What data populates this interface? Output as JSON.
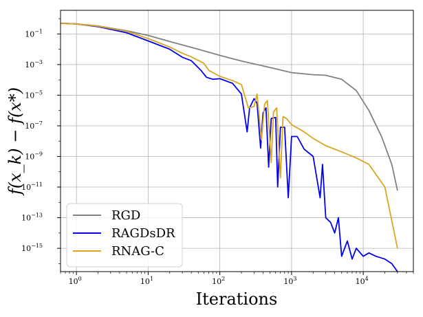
{
  "chart_data": {
    "type": "line",
    "title": "",
    "xlabel": "Iterations",
    "ylabel": "f(x_k) − f(x*)",
    "xscale": "log",
    "yscale": "log",
    "xlim": [
      0.6,
      50000
    ],
    "ylim": [
      3e-17,
      3.5
    ],
    "grid": true,
    "legend_position": "bottom-left",
    "x_ticks": [
      {
        "base": "10",
        "exp": "0",
        "value": 1
      },
      {
        "base": "10",
        "exp": "1",
        "value": 10
      },
      {
        "base": "10",
        "exp": "2",
        "value": 100
      },
      {
        "base": "10",
        "exp": "3",
        "value": 1000
      },
      {
        "base": "10",
        "exp": "4",
        "value": 10000
      }
    ],
    "y_ticks": [
      {
        "base": "10",
        "exp": "−1",
        "value": 0.1
      },
      {
        "base": "10",
        "exp": "−3",
        "value": 0.001
      },
      {
        "base": "10",
        "exp": "−5",
        "value": 1e-05
      },
      {
        "base": "10",
        "exp": "−7",
        "value": 1e-07
      },
      {
        "base": "10",
        "exp": "−9",
        "value": 1e-09
      },
      {
        "base": "10",
        "exp": "−11",
        "value": 1e-11
      },
      {
        "base": "10",
        "exp": "−13",
        "value": 1e-13
      },
      {
        "base": "10",
        "exp": "−15",
        "value": 1e-15
      }
    ],
    "series": [
      {
        "name": "RGD",
        "color": "#808080",
        "points": [
          [
            0.6,
            0.5
          ],
          [
            1,
            0.45
          ],
          [
            2,
            0.33
          ],
          [
            5,
            0.16
          ],
          [
            10,
            0.08
          ],
          [
            20,
            0.032
          ],
          [
            50,
            0.01
          ],
          [
            100,
            0.004
          ],
          [
            200,
            0.0017
          ],
          [
            500,
            0.00065
          ],
          [
            1000,
            0.0003
          ],
          [
            2000,
            0.00022
          ],
          [
            3000,
            0.0002
          ],
          [
            5000,
            0.00011
          ],
          [
            8000,
            2e-05
          ],
          [
            12000,
            1e-06
          ],
          [
            18000,
            2e-08
          ],
          [
            25000,
            3e-10
          ],
          [
            30000,
            6e-12
          ]
        ]
      },
      {
        "name": "RAGDsDR",
        "color": "#0000ee",
        "points": [
          [
            0.6,
            0.5
          ],
          [
            1,
            0.45
          ],
          [
            2,
            0.3
          ],
          [
            5,
            0.12
          ],
          [
            10,
            0.035
          ],
          [
            20,
            0.01
          ],
          [
            30,
            0.003
          ],
          [
            40,
            0.0018
          ],
          [
            55,
            0.0004
          ],
          [
            65,
            0.00015
          ],
          [
            80,
            0.00011
          ],
          [
            100,
            0.00012
          ],
          [
            150,
            6e-05
          ],
          [
            200,
            1.2e-05
          ],
          [
            240,
            4e-08
          ],
          [
            260,
            1.5e-06
          ],
          [
            300,
            6e-06
          ],
          [
            330,
            3e-06
          ],
          [
            370,
            3.5e-09
          ],
          [
            400,
            7e-07
          ],
          [
            440,
            1.5e-06
          ],
          [
            480,
            2e-10
          ],
          [
            520,
            3e-07
          ],
          [
            600,
            3.5e-07
          ],
          [
            640,
            1e-11
          ],
          [
            700,
            8e-08
          ],
          [
            800,
            8e-08
          ],
          [
            900,
            2e-12
          ],
          [
            1000,
            2e-08
          ],
          [
            1200,
            2e-08
          ],
          [
            1500,
            3e-09
          ],
          [
            2000,
            1e-09
          ],
          [
            2500,
            2e-12
          ],
          [
            2700,
            3e-10
          ],
          [
            3000,
            1e-13
          ],
          [
            3500,
            5e-14
          ],
          [
            4000,
            1e-14
          ],
          [
            4500,
            1e-13
          ],
          [
            5000,
            3e-16
          ],
          [
            6000,
            3e-15
          ],
          [
            7000,
            2e-16
          ],
          [
            8000,
            1e-15
          ],
          [
            10000,
            3e-16
          ],
          [
            12000,
            5e-16
          ],
          [
            15000,
            3e-16
          ],
          [
            20000,
            2e-16
          ],
          [
            25000,
            1e-16
          ],
          [
            30000,
            3e-17
          ]
        ]
      },
      {
        "name": "RNAG-C",
        "color": "#daa520",
        "points": [
          [
            0.6,
            0.5
          ],
          [
            1,
            0.45
          ],
          [
            2,
            0.32
          ],
          [
            5,
            0.15
          ],
          [
            10,
            0.05
          ],
          [
            20,
            0.014
          ],
          [
            30,
            0.0055
          ],
          [
            40,
            0.0032
          ],
          [
            60,
            0.0012
          ],
          [
            70,
            0.00042
          ],
          [
            100,
            0.00017
          ],
          [
            150,
            9e-05
          ],
          [
            200,
            5e-05
          ],
          [
            250,
            1.5e-06
          ],
          [
            300,
            1.8e-06
          ],
          [
            330,
            1.2e-05
          ],
          [
            380,
            1.2e-08
          ],
          [
            420,
            2.5e-06
          ],
          [
            460,
            4.5e-06
          ],
          [
            520,
            4e-10
          ],
          [
            560,
            8e-07
          ],
          [
            620,
            1.5e-06
          ],
          [
            700,
            4e-11
          ],
          [
            760,
            4e-07
          ],
          [
            850,
            3e-07
          ],
          [
            1000,
            1.2e-07
          ],
          [
            1500,
            4e-08
          ],
          [
            2000,
            1.5e-08
          ],
          [
            3000,
            5e-09
          ],
          [
            5000,
            2e-09
          ],
          [
            8000,
            8e-10
          ],
          [
            12000,
            3e-10
          ],
          [
            20000,
            1e-11
          ],
          [
            30000,
            1e-15
          ]
        ]
      }
    ]
  }
}
